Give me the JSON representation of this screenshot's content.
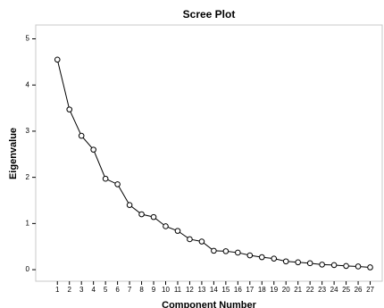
{
  "chart_data": {
    "type": "line",
    "title": "Scree Plot",
    "x_label": "Component Number",
    "y_label": "Eigenvalue",
    "x": [
      1,
      2,
      3,
      4,
      5,
      6,
      7,
      8,
      9,
      10,
      11,
      12,
      13,
      14,
      15,
      16,
      17,
      18,
      19,
      20,
      21,
      22,
      23,
      24,
      25,
      26,
      27
    ],
    "series": [
      {
        "name": "Eigenvalue",
        "color": "#000000",
        "values": [
          4.55,
          3.47,
          2.9,
          2.6,
          1.97,
          1.85,
          1.4,
          1.2,
          1.14,
          0.94,
          0.84,
          0.66,
          0.61,
          0.41,
          0.4,
          0.37,
          0.31,
          0.27,
          0.24,
          0.18,
          0.16,
          0.14,
          0.11,
          0.1,
          0.08,
          0.07,
          0.05
        ]
      }
    ],
    "xlim": [
      -0.8,
      28
    ],
    "xticks": [
      1,
      2,
      3,
      4,
      5,
      6,
      7,
      8,
      9,
      10,
      11,
      12,
      13,
      14,
      15,
      16,
      17,
      18,
      19,
      20,
      21,
      22,
      23,
      24,
      25,
      26,
      27
    ],
    "ylim": [
      -0.25,
      5.3
    ],
    "yticks": [
      0,
      1,
      2,
      3,
      4,
      5
    ],
    "grid": false
  }
}
